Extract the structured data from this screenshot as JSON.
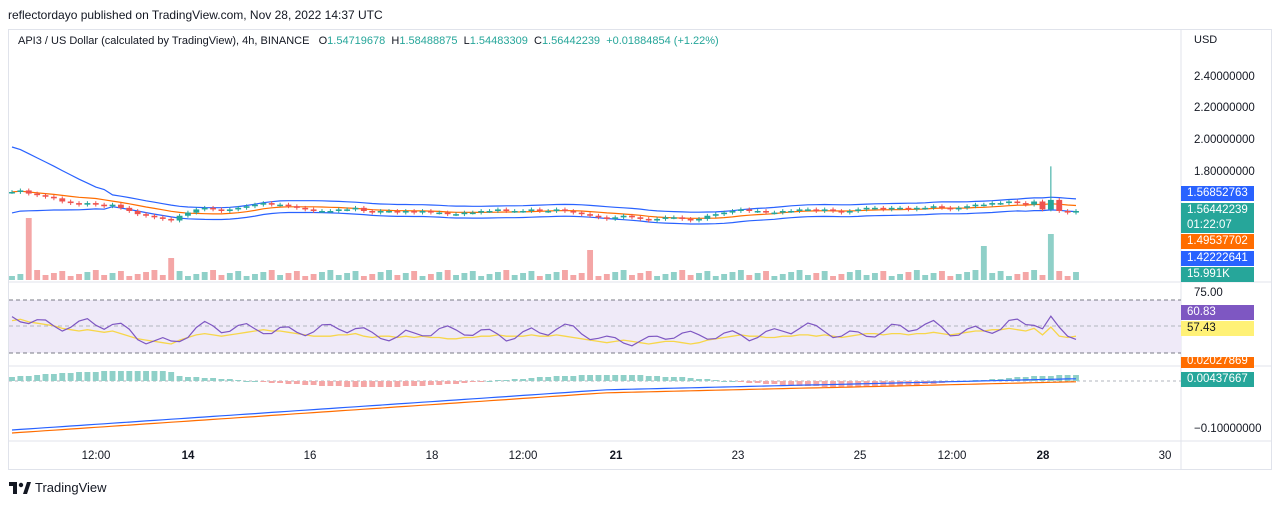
{
  "header": {
    "publisher_text": "reflectordayo published on TradingView.com, Nov 28, 2022 14:37 UTC"
  },
  "legend": {
    "symbol": "API3 / US Dollar (calculated by TradingView), 4h, BINANCE",
    "open_label": "O",
    "open": "1.54719678",
    "high_label": "H",
    "high": "1.58488875",
    "low_label": "L",
    "low": "1.54483309",
    "close_label": "C",
    "close": "1.56442239",
    "change": "+0.01884854 (+1.22%)"
  },
  "price_axis": {
    "currency": "USD",
    "ticks": [
      "2.40000000",
      "2.20000000",
      "2.00000000",
      "1.80000000"
    ]
  },
  "price_tags": {
    "upper_band": "1.56852763",
    "last_price": "1.56442239",
    "countdown": "01:22:07",
    "basis": "1.49537702",
    "lower_band": "1.42222641",
    "volume": "15.991K"
  },
  "rsi_panel": {
    "upper_level": "75.00",
    "rsi_value": "60.83",
    "rsi_ma_value": "57.43"
  },
  "macd_panel": {
    "signal_value": "0.02027869",
    "histogram_value": "0.00437667",
    "axis_tick": "−0.10000000"
  },
  "time_axis": {
    "ticks": [
      {
        "label": "12:00",
        "bold": false
      },
      {
        "label": "14",
        "bold": true
      },
      {
        "label": "16",
        "bold": false
      },
      {
        "label": "18",
        "bold": false
      },
      {
        "label": "12:00",
        "bold": false
      },
      {
        "label": "21",
        "bold": true
      },
      {
        "label": "23",
        "bold": false
      },
      {
        "label": "25",
        "bold": false
      },
      {
        "label": "12:00",
        "bold": false
      },
      {
        "label": "28",
        "bold": true
      },
      {
        "label": "30",
        "bold": false
      }
    ]
  },
  "footer": {
    "brand": "TradingView",
    "logo_icon": "tradingview-logo-icon"
  },
  "colors": {
    "up": "#26a69a",
    "down": "#ef5350",
    "up_volume": "#8fd0c8",
    "down_volume": "#f4a6a6",
    "band": "#2962ff",
    "basis": "#ff6d00",
    "rsi": "#7e57c2",
    "rsi_ma": "#f7d64a",
    "rsi_fill": "#efeaf8",
    "macd": "#2962ff",
    "signal": "#ff6d00",
    "tag_band": "#2962ff",
    "tag_price": "#26a69a",
    "tag_basis": "#ff6d00",
    "tag_rsi": "#7e57c2",
    "tag_rsi_ma": "#fff176",
    "tag_volume": "#26a69a"
  },
  "chart_data": {
    "type": "candlestick",
    "symbol": "API3 / US Dollar",
    "interval": "4h",
    "exchange": "BINANCE",
    "yaxis_ticks": [
      2.4,
      2.2,
      2.0,
      1.8
    ],
    "ohlc_last": {
      "open": 1.54719678,
      "high": 1.58488875,
      "low": 1.54483309,
      "close": 1.56442239
    },
    "bollinger_last": {
      "upper": 1.56852763,
      "basis": 1.49537702,
      "lower": 1.42222641
    },
    "volume_last": "15.991K",
    "rsi_last": 60.83,
    "rsi_ma_last": 57.43,
    "macd_signal_last": 0.02027869,
    "macd_hist_last": 0.00437667
  }
}
